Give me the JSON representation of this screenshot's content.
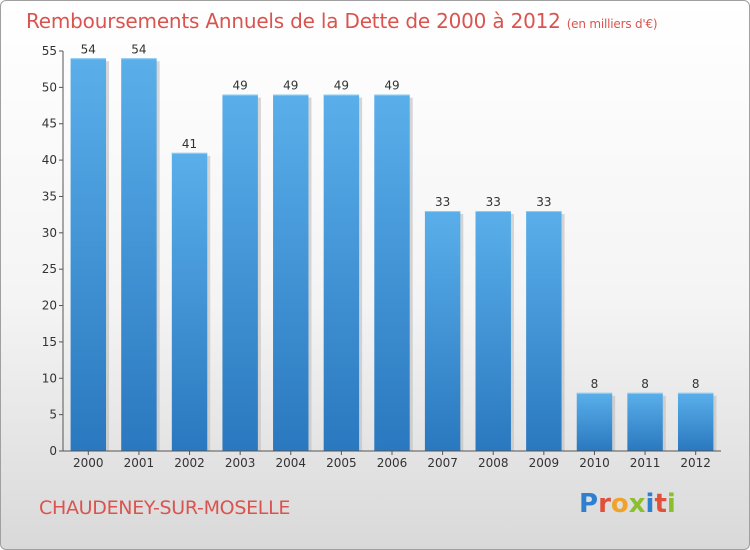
{
  "title": "Remboursements Annuels de la Dette de 2000 à 2012",
  "unit": "(en milliers d'€)",
  "commune": "CHAUDENEY-SUR-MOSELLE",
  "logo": "Proxiti",
  "colors": {
    "bar_top": "#5aafea",
    "bar_bottom": "#2a78bf",
    "title": "#d9544f"
  },
  "chart_data": {
    "type": "bar",
    "title": "Remboursements Annuels de la Dette de 2000 à 2012",
    "categories": [
      "2000",
      "2001",
      "2002",
      "2003",
      "2004",
      "2005",
      "2006",
      "2007",
      "2008",
      "2009",
      "2010",
      "2011",
      "2012"
    ],
    "values": [
      54,
      54,
      41,
      49,
      49,
      49,
      49,
      33,
      33,
      33,
      8,
      8,
      8
    ],
    "ylim": [
      0,
      55
    ],
    "yticks": [
      0,
      5,
      10,
      15,
      20,
      25,
      30,
      35,
      40,
      45,
      50,
      55
    ],
    "grid": false,
    "data_labels": true
  }
}
